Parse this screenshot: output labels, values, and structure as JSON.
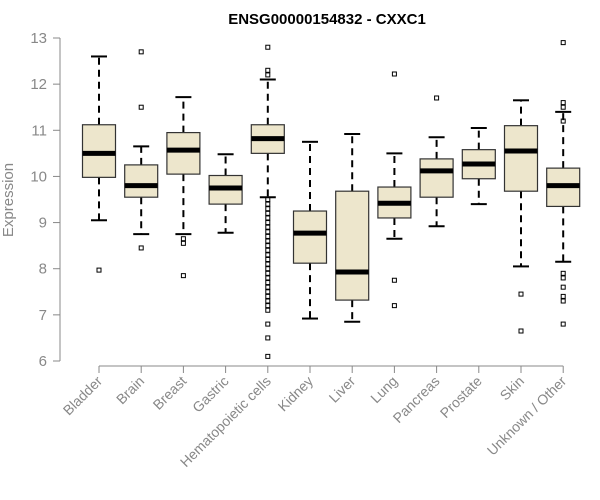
{
  "chart_data": {
    "type": "boxplot",
    "title": "ENSG00000154832 - CXXC1",
    "ylabel": "Expression",
    "xlabel": "",
    "ylim": [
      6,
      13
    ],
    "yticks": [
      6,
      7,
      8,
      9,
      10,
      11,
      12,
      13
    ],
    "colors": {
      "box_fill": "#ede6cc",
      "box_stroke": "#333333",
      "median": "#000000",
      "axis": "#888888",
      "text": "#888888",
      "title": "#000000"
    },
    "categories": [
      "Bladder",
      "Brain",
      "Breast",
      "Gastric",
      "Hematopoietic cells",
      "Kidney",
      "Liver",
      "Lung",
      "Pancreas",
      "Prostate",
      "Skin",
      "Unknown / Other"
    ],
    "boxes": [
      {
        "category": "Bladder",
        "q1": 9.98,
        "median": 10.5,
        "q3": 11.12,
        "whisker_low": 9.05,
        "whisker_high": 12.6,
        "outliers": [
          7.97
        ]
      },
      {
        "category": "Brain",
        "q1": 9.55,
        "median": 9.8,
        "q3": 10.25,
        "whisker_low": 8.75,
        "whisker_high": 10.65,
        "outliers": [
          8.45,
          11.5,
          12.7
        ]
      },
      {
        "category": "Breast",
        "q1": 10.05,
        "median": 10.57,
        "q3": 10.95,
        "whisker_low": 8.75,
        "whisker_high": 11.72,
        "outliers": [
          8.55,
          8.65,
          7.85
        ]
      },
      {
        "category": "Gastric",
        "q1": 9.4,
        "median": 9.75,
        "q3": 10.02,
        "whisker_low": 8.78,
        "whisker_high": 10.48,
        "outliers": []
      },
      {
        "category": "Hematopoietic cells",
        "q1": 10.5,
        "median": 10.82,
        "q3": 11.12,
        "whisker_low": 9.55,
        "whisker_high": 12.1,
        "outliers": [
          12.8,
          12.3,
          12.2,
          9.5,
          9.4,
          9.3,
          9.2,
          9.1,
          9.0,
          8.9,
          8.8,
          8.7,
          8.6,
          8.5,
          8.4,
          8.3,
          8.2,
          8.1,
          8.0,
          7.9,
          7.8,
          7.7,
          7.6,
          7.5,
          7.4,
          7.3,
          7.2,
          7.1,
          6.8,
          6.5,
          6.1
        ]
      },
      {
        "category": "Kidney",
        "q1": 8.12,
        "median": 8.77,
        "q3": 9.25,
        "whisker_low": 6.92,
        "whisker_high": 10.75,
        "outliers": []
      },
      {
        "category": "Liver",
        "q1": 7.32,
        "median": 7.93,
        "q3": 9.68,
        "whisker_low": 6.85,
        "whisker_high": 10.92,
        "outliers": []
      },
      {
        "category": "Lung",
        "q1": 9.1,
        "median": 9.42,
        "q3": 9.77,
        "whisker_low": 8.65,
        "whisker_high": 10.5,
        "outliers": [
          12.22,
          7.75,
          7.2
        ]
      },
      {
        "category": "Pancreas",
        "q1": 9.55,
        "median": 10.12,
        "q3": 10.38,
        "whisker_low": 8.92,
        "whisker_high": 10.85,
        "outliers": [
          11.7
        ]
      },
      {
        "category": "Prostate",
        "q1": 9.95,
        "median": 10.27,
        "q3": 10.58,
        "whisker_low": 9.4,
        "whisker_high": 11.05,
        "outliers": []
      },
      {
        "category": "Skin",
        "q1": 9.68,
        "median": 10.55,
        "q3": 11.1,
        "whisker_low": 8.05,
        "whisker_high": 11.65,
        "outliers": [
          7.45,
          6.65
        ]
      },
      {
        "category": "Unknown / Other",
        "q1": 9.35,
        "median": 9.8,
        "q3": 10.18,
        "whisker_low": 8.15,
        "whisker_high": 11.4,
        "outliers": [
          12.9,
          11.6,
          11.5,
          11.2,
          7.9,
          7.8,
          7.6,
          7.4,
          7.3,
          6.8
        ]
      }
    ]
  }
}
